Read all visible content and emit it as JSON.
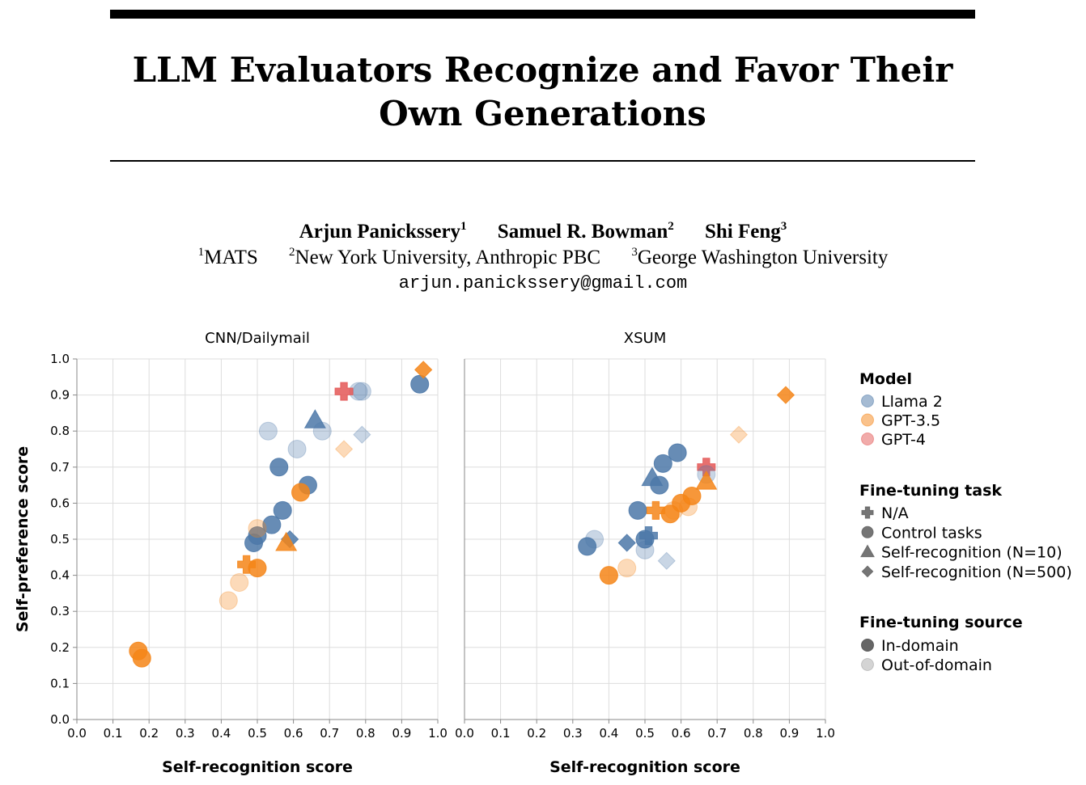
{
  "paper": {
    "title": "LLM Evaluators Recognize and Favor Their Own Generations",
    "authors": [
      {
        "name": "Arjun Panickssery",
        "sup": "1"
      },
      {
        "name": "Samuel R. Bowman",
        "sup": "2"
      },
      {
        "name": "Shi Feng",
        "sup": "3"
      }
    ],
    "affiliations": [
      {
        "sup": "1",
        "name": "MATS"
      },
      {
        "sup": "2",
        "name": "New York University, Anthropic PBC"
      },
      {
        "sup": "3",
        "name": "George Washington University"
      }
    ],
    "email": "arjun.panickssery@gmail.com"
  },
  "legend": {
    "model": {
      "title": "Model",
      "items": [
        {
          "label": "Llama 2",
          "color": "#4c78a8"
        },
        {
          "label": "GPT-3.5",
          "color": "#f58518"
        },
        {
          "label": "GPT-4",
          "color": "#e45756"
        }
      ]
    },
    "task": {
      "title": "Fine-tuning task",
      "items": [
        {
          "label": "N/A",
          "shape": "cross"
        },
        {
          "label": "Control tasks",
          "shape": "circle"
        },
        {
          "label": "Self-recognition (N=10)",
          "shape": "triangle"
        },
        {
          "label": "Self-recognition (N=500)",
          "shape": "diamond"
        }
      ]
    },
    "source": {
      "title": "Fine-tuning source",
      "items": [
        {
          "label": "In-domain",
          "opacity": "dark"
        },
        {
          "label": "Out-of-domain",
          "opacity": "light"
        }
      ]
    }
  },
  "chart_data": [
    {
      "type": "scatter",
      "title": "CNN/Dailymail",
      "xlabel": "Self-recognition score",
      "ylabel": "Self-preference score",
      "xlim": [
        0,
        1
      ],
      "ylim": [
        0,
        1
      ],
      "xticks": [
        "0.0",
        "0.1",
        "0.2",
        "0.3",
        "0.4",
        "0.5",
        "0.6",
        "0.7",
        "0.8",
        "0.9",
        "1.0"
      ],
      "yticks": [
        "0.0",
        "0.1",
        "0.2",
        "0.3",
        "0.4",
        "0.5",
        "0.6",
        "0.7",
        "0.8",
        "0.9",
        "1.0"
      ],
      "points": [
        {
          "x": 0.53,
          "y": 0.8,
          "model": "Llama 2",
          "shape": "circle",
          "source": "out"
        },
        {
          "x": 0.61,
          "y": 0.75,
          "model": "Llama 2",
          "shape": "circle",
          "source": "out"
        },
        {
          "x": 0.68,
          "y": 0.8,
          "model": "Llama 2",
          "shape": "circle",
          "source": "out"
        },
        {
          "x": 0.79,
          "y": 0.91,
          "model": "Llama 2",
          "shape": "circle",
          "source": "out"
        },
        {
          "x": 0.78,
          "y": 0.91,
          "model": "Llama 2",
          "shape": "circle",
          "source": "out"
        },
        {
          "x": 0.79,
          "y": 0.79,
          "model": "Llama 2",
          "shape": "diamond",
          "source": "out"
        },
        {
          "x": 0.66,
          "y": 0.83,
          "model": "Llama 2",
          "shape": "triangle",
          "source": "in"
        },
        {
          "x": 0.95,
          "y": 0.93,
          "model": "Llama 2",
          "shape": "circle",
          "source": "in"
        },
        {
          "x": 0.56,
          "y": 0.7,
          "model": "Llama 2",
          "shape": "circle",
          "source": "in"
        },
        {
          "x": 0.64,
          "y": 0.65,
          "model": "Llama 2",
          "shape": "circle",
          "source": "in"
        },
        {
          "x": 0.57,
          "y": 0.58,
          "model": "Llama 2",
          "shape": "circle",
          "source": "in"
        },
        {
          "x": 0.54,
          "y": 0.54,
          "model": "Llama 2",
          "shape": "circle",
          "source": "in"
        },
        {
          "x": 0.5,
          "y": 0.51,
          "model": "Llama 2",
          "shape": "circle",
          "source": "in"
        },
        {
          "x": 0.49,
          "y": 0.49,
          "model": "Llama 2",
          "shape": "circle",
          "source": "in"
        },
        {
          "x": 0.59,
          "y": 0.5,
          "model": "Llama 2",
          "shape": "diamond",
          "source": "in"
        },
        {
          "x": 0.74,
          "y": 0.91,
          "model": "GPT-4",
          "shape": "cross",
          "source": "na"
        },
        {
          "x": 0.96,
          "y": 0.97,
          "model": "GPT-3.5",
          "shape": "diamond",
          "source": "in"
        },
        {
          "x": 0.74,
          "y": 0.75,
          "model": "GPT-3.5",
          "shape": "diamond",
          "source": "out"
        },
        {
          "x": 0.62,
          "y": 0.63,
          "model": "GPT-3.5",
          "shape": "circle",
          "source": "in"
        },
        {
          "x": 0.5,
          "y": 0.53,
          "model": "GPT-3.5",
          "shape": "circle",
          "source": "out"
        },
        {
          "x": 0.58,
          "y": 0.49,
          "model": "GPT-3.5",
          "shape": "triangle",
          "source": "in"
        },
        {
          "x": 0.47,
          "y": 0.43,
          "model": "GPT-3.5",
          "shape": "cross",
          "source": "na"
        },
        {
          "x": 0.5,
          "y": 0.42,
          "model": "GPT-3.5",
          "shape": "circle",
          "source": "in"
        },
        {
          "x": 0.45,
          "y": 0.38,
          "model": "GPT-3.5",
          "shape": "circle",
          "source": "out"
        },
        {
          "x": 0.42,
          "y": 0.33,
          "model": "GPT-3.5",
          "shape": "circle",
          "source": "out"
        },
        {
          "x": 0.17,
          "y": 0.19,
          "model": "GPT-3.5",
          "shape": "circle",
          "source": "in"
        },
        {
          "x": 0.18,
          "y": 0.17,
          "model": "GPT-3.5",
          "shape": "circle",
          "source": "in"
        }
      ]
    },
    {
      "type": "scatter",
      "title": "XSUM",
      "xlabel": "Self-recognition score",
      "ylabel": "",
      "xlim": [
        0,
        1
      ],
      "ylim": [
        0,
        1
      ],
      "xticks": [
        "0.0",
        "0.1",
        "0.2",
        "0.3",
        "0.4",
        "0.5",
        "0.6",
        "0.7",
        "0.8",
        "0.9",
        "1.0"
      ],
      "points": [
        {
          "x": 0.89,
          "y": 0.9,
          "model": "GPT-3.5",
          "shape": "diamond",
          "source": "in"
        },
        {
          "x": 0.76,
          "y": 0.79,
          "model": "GPT-3.5",
          "shape": "diamond",
          "source": "out"
        },
        {
          "x": 0.67,
          "y": 0.7,
          "model": "GPT-4",
          "shape": "cross",
          "source": "na"
        },
        {
          "x": 0.67,
          "y": 0.68,
          "model": "Llama 2",
          "shape": "circle",
          "source": "out"
        },
        {
          "x": 0.67,
          "y": 0.66,
          "model": "GPT-3.5",
          "shape": "triangle",
          "source": "in"
        },
        {
          "x": 0.59,
          "y": 0.74,
          "model": "Llama 2",
          "shape": "circle",
          "source": "in"
        },
        {
          "x": 0.55,
          "y": 0.71,
          "model": "Llama 2",
          "shape": "circle",
          "source": "in"
        },
        {
          "x": 0.52,
          "y": 0.67,
          "model": "Llama 2",
          "shape": "triangle",
          "source": "in"
        },
        {
          "x": 0.54,
          "y": 0.65,
          "model": "Llama 2",
          "shape": "circle",
          "source": "in"
        },
        {
          "x": 0.48,
          "y": 0.58,
          "model": "Llama 2",
          "shape": "circle",
          "source": "in"
        },
        {
          "x": 0.63,
          "y": 0.62,
          "model": "GPT-3.5",
          "shape": "circle",
          "source": "in"
        },
        {
          "x": 0.6,
          "y": 0.6,
          "model": "GPT-3.5",
          "shape": "circle",
          "source": "in"
        },
        {
          "x": 0.62,
          "y": 0.59,
          "model": "GPT-3.5",
          "shape": "circle",
          "source": "out"
        },
        {
          "x": 0.58,
          "y": 0.58,
          "model": "GPT-3.5",
          "shape": "circle",
          "source": "out"
        },
        {
          "x": 0.53,
          "y": 0.58,
          "model": "GPT-3.5",
          "shape": "cross",
          "source": "na"
        },
        {
          "x": 0.57,
          "y": 0.57,
          "model": "GPT-3.5",
          "shape": "circle",
          "source": "in"
        },
        {
          "x": 0.51,
          "y": 0.51,
          "model": "Llama 2",
          "shape": "cross",
          "source": "na"
        },
        {
          "x": 0.5,
          "y": 0.5,
          "model": "Llama 2",
          "shape": "circle",
          "source": "in"
        },
        {
          "x": 0.45,
          "y": 0.49,
          "model": "Llama 2",
          "shape": "diamond",
          "source": "in"
        },
        {
          "x": 0.36,
          "y": 0.5,
          "model": "Llama 2",
          "shape": "circle",
          "source": "out"
        },
        {
          "x": 0.34,
          "y": 0.48,
          "model": "Llama 2",
          "shape": "circle",
          "source": "in"
        },
        {
          "x": 0.5,
          "y": 0.47,
          "model": "Llama 2",
          "shape": "circle",
          "source": "out"
        },
        {
          "x": 0.56,
          "y": 0.44,
          "model": "Llama 2",
          "shape": "diamond",
          "source": "out"
        },
        {
          "x": 0.45,
          "y": 0.42,
          "model": "GPT-3.5",
          "shape": "circle",
          "source": "out"
        },
        {
          "x": 0.4,
          "y": 0.4,
          "model": "GPT-3.5",
          "shape": "circle",
          "source": "in"
        }
      ]
    }
  ]
}
